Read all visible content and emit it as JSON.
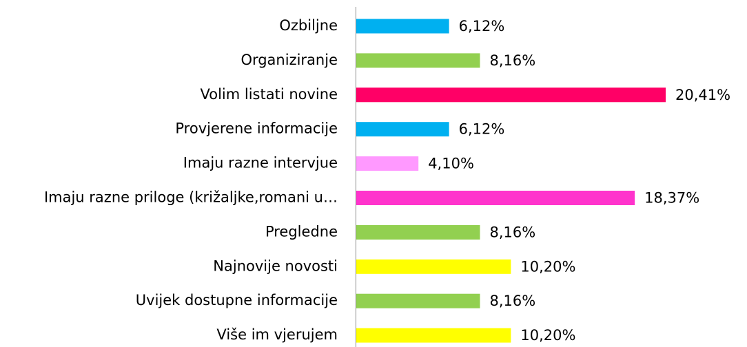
{
  "chart_data": {
    "type": "barh",
    "categories": [
      "Ozbiljne",
      "Organiziranje",
      "Volim listati novine",
      "Provjerene informacije",
      "Imaju razne intervjue",
      "Imaju razne priloge (križaljke,romani u…",
      "Pregledne",
      "Najnovije novosti",
      "Uvijek dostupne informacije",
      "Više im vjerujem"
    ],
    "values": [
      6.12,
      8.16,
      20.41,
      6.12,
      4.1,
      18.37,
      8.16,
      10.2,
      8.16,
      10.2
    ],
    "value_labels": [
      "6,12%",
      "8,16%",
      "20,41%",
      "6,12%",
      "4,10%",
      "18,37%",
      "8,16%",
      "10,20%",
      "8,16%",
      "10,20%"
    ],
    "colors": [
      "#00b0f0",
      "#92d050",
      "#ff0066",
      "#00b0f0",
      "#ff99ff",
      "#ff33cc",
      "#92d050",
      "#ffff00",
      "#92d050",
      "#ffff00"
    ]
  }
}
